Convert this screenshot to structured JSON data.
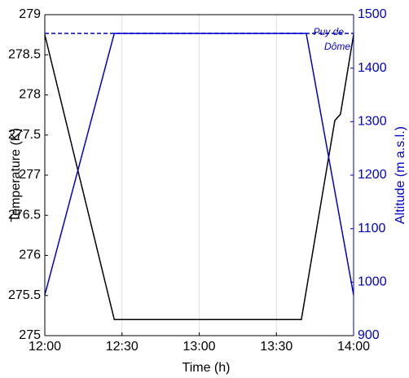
{
  "chart_data": {
    "type": "line",
    "xlabel": "Time (h)",
    "ylabel": "Temperature (K)",
    "y2label": "Altitude (m a.s.l.)",
    "xlim": [
      0,
      120
    ],
    "xticks": [
      {
        "value": 0,
        "label": "12:00"
      },
      {
        "value": 30,
        "label": "12:30"
      },
      {
        "value": 60,
        "label": "13:00"
      },
      {
        "value": 90,
        "label": "13:30"
      },
      {
        "value": 120,
        "label": "14:00"
      }
    ],
    "ylim": [
      275,
      279
    ],
    "yticks": [
      275,
      275.5,
      276,
      276.5,
      277,
      277.5,
      278,
      278.5,
      279
    ],
    "y2lim": [
      900,
      1500
    ],
    "y2ticks": [
      900,
      1000,
      1100,
      1200,
      1300,
      1400,
      1500
    ],
    "y2color": "#0000cc",
    "grid": true,
    "series": [
      {
        "name": "Temperature",
        "color": "#000000",
        "x": [
          0,
          27,
          99.7,
          112.7,
          114.9,
          120
        ],
        "values": [
          278.75,
          275.2,
          275.2,
          277.68,
          277.76,
          278.75
        ]
      },
      {
        "name": "Altitude",
        "color": "#0000cc",
        "axis": "y2",
        "x": [
          0,
          27,
          101.6,
          120
        ],
        "values": [
          976,
          1465,
          1465,
          976
        ]
      }
    ],
    "reference_line": {
      "value": 1465,
      "axis": "y2",
      "color": "#0000cc",
      "label": [
        "Puy de",
        "Dôme"
      ]
    }
  }
}
